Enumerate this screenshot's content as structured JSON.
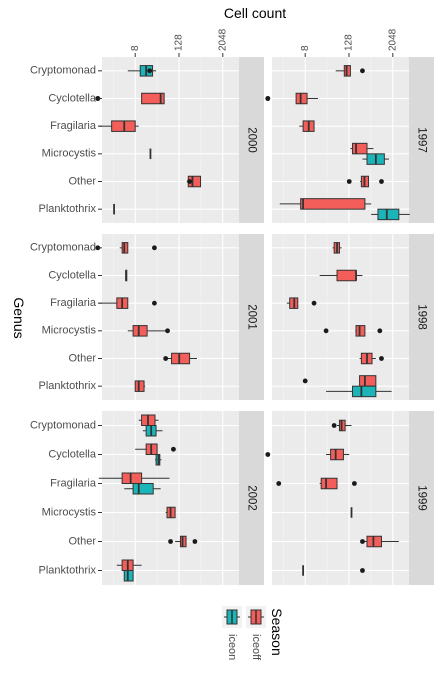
{
  "chart_data": {
    "type": "boxplot",
    "orientation": "horizontal",
    "x_scale": "log2",
    "xlabel": "Cell count",
    "ylabel": "Genus",
    "x_ticks": [
      8,
      128,
      2048
    ],
    "xlim": [
      0.5,
      50000
    ],
    "legend": {
      "title": "Season",
      "placement": "bottom",
      "entries": [
        {
          "name": "iceon",
          "color": "#1BB5B9"
        },
        {
          "name": "iceoff",
          "color": "#F35E5A"
        }
      ]
    },
    "categories": [
      "Cryptomonad",
      "Cyclotella",
      "Fragilaria",
      "Microcystis",
      "Other",
      "Planktothrix"
    ],
    "panels": [
      {
        "year": "2000",
        "boxes": [
          {
            "genus": "Cryptomonad",
            "season": "iceon",
            "wlo": 5,
            "q1": 11,
            "median": 16,
            "q3": 24,
            "whi": 30,
            "outliers": [
              20
            ]
          },
          {
            "genus": "Cyclotella",
            "season": "iceoff",
            "wlo": 12,
            "q1": 12,
            "median": 40,
            "q3": 50,
            "whi": 50,
            "outliers": [
              0.75,
              0.75
            ]
          },
          {
            "genus": "Fragilaria",
            "season": "iceoff",
            "wlo": 0.8,
            "q1": 1.8,
            "median": 4,
            "q3": 8,
            "whi": 10
          },
          {
            "genus": "Microcystis",
            "season": "iceoff",
            "wlo": 21,
            "q1": 21,
            "median": 21,
            "q3": 21,
            "whi": 21
          },
          {
            "genus": "Other",
            "season": "iceoff",
            "wlo": 210,
            "q1": 230,
            "median": 300,
            "q3": 500,
            "whi": 510,
            "outliers": [
              250
            ]
          },
          {
            "genus": "Planktothrix",
            "season": "iceoff",
            "wlo": 2.1,
            "q1": 2.1,
            "median": 2.1,
            "q3": 2.1,
            "whi": 2.1
          }
        ]
      },
      {
        "year": "2001",
        "boxes": [
          {
            "genus": "Cryptomonad",
            "season": "iceoff",
            "wlo": 3,
            "q1": 3.5,
            "median": 4,
            "q3": 5,
            "whi": 5,
            "outliers": [
              0.75,
              27
            ]
          },
          {
            "genus": "Cyclotella",
            "season": "iceoff",
            "wlo": 4.4,
            "q1": 4.4,
            "median": 4.5,
            "q3": 4.7,
            "whi": 4.7
          },
          {
            "genus": "Fragilaria",
            "season": "iceoff",
            "wlo": 0.8,
            "q1": 2.5,
            "median": 3.5,
            "q3": 5,
            "whi": 5,
            "outliers": [
              27
            ]
          },
          {
            "genus": "Microcystis",
            "season": "iceoff",
            "wlo": 5,
            "q1": 7,
            "median": 10,
            "q3": 17,
            "whi": 60,
            "outliers": [
              62
            ]
          },
          {
            "genus": "Other",
            "season": "iceoff",
            "wlo": 60,
            "q1": 80,
            "median": 130,
            "q3": 250,
            "whi": 400,
            "outliers": [
              55
            ]
          },
          {
            "genus": "Planktothrix",
            "season": "iceoff",
            "wlo": 8,
            "q1": 8,
            "median": 10,
            "q3": 14,
            "whi": 15
          }
        ]
      },
      {
        "year": "2002",
        "boxes": [
          {
            "genus": "Cryptomonad",
            "season": "iceoff",
            "wlo": 10,
            "q1": 12,
            "median": 18,
            "q3": 28,
            "whi": 35
          },
          {
            "genus": "Cryptomonad",
            "season": "iceon",
            "wlo": 13,
            "q1": 16,
            "median": 22,
            "q3": 30,
            "whi": 45
          },
          {
            "genus": "Cyclotella",
            "season": "iceoff",
            "wlo": 8,
            "q1": 16,
            "median": 22,
            "q3": 32,
            "whi": 32,
            "outliers": [
              90
            ]
          },
          {
            "genus": "Cyclotella",
            "season": "iceon",
            "wlo": 28,
            "q1": 30,
            "median": 35,
            "q3": 38,
            "whi": 42
          },
          {
            "genus": "Fragilaria",
            "season": "iceoff",
            "wlo": 0.8,
            "q1": 3.5,
            "median": 6,
            "q3": 12,
            "whi": 70
          },
          {
            "genus": "Fragilaria",
            "season": "iceon",
            "wlo": 4,
            "q1": 7,
            "median": 10,
            "q3": 25,
            "whi": 40
          },
          {
            "genus": "Microcystis",
            "season": "iceoff",
            "wlo": 55,
            "q1": 60,
            "median": 75,
            "q3": 100,
            "whi": 100
          },
          {
            "genus": "Other",
            "season": "iceoff",
            "wlo": 100,
            "q1": 140,
            "median": 160,
            "q3": 200,
            "whi": 200,
            "outliers": [
              350,
              75
            ]
          },
          {
            "genus": "Planktothrix",
            "season": "iceoff",
            "wlo": 2.5,
            "q1": 3.5,
            "median": 5,
            "q3": 7,
            "whi": 12
          },
          {
            "genus": "Planktothrix",
            "season": "iceon",
            "wlo": 4,
            "q1": 4,
            "median": 5,
            "q3": 7,
            "whi": 7
          }
        ]
      },
      {
        "year": "1997",
        "boxes": [
          {
            "genus": "Cryptomonad",
            "season": "iceoff",
            "wlo": 55,
            "q1": 95,
            "median": 110,
            "q3": 140,
            "whi": 140,
            "outliers": [
              300
            ]
          },
          {
            "genus": "Cyclotella",
            "season": "iceoff",
            "wlo": 4.5,
            "q1": 4.5,
            "median": 6,
            "q3": 9,
            "whi": 18,
            "outliers": [
              0.75,
              0.75
            ]
          },
          {
            "genus": "Fragilaria",
            "season": "iceoff",
            "wlo": 5.5,
            "q1": 7,
            "median": 10,
            "q3": 14,
            "whi": 14
          },
          {
            "genus": "Microcystis",
            "season": "iceoff",
            "wlo": 140,
            "q1": 160,
            "median": 200,
            "q3": 400,
            "whi": 600
          },
          {
            "genus": "Microcystis",
            "season": "iceon",
            "wlo": 300,
            "q1": 400,
            "median": 700,
            "q3": 1200,
            "whi": 1600
          },
          {
            "genus": "Other",
            "season": "iceoff",
            "wlo": 260,
            "q1": 280,
            "median": 340,
            "q3": 440,
            "whi": 440,
            "outliers": [
              130,
              1000
            ]
          },
          {
            "genus": "Planktothrix",
            "season": "iceoff",
            "wlo": 1.6,
            "q1": 6,
            "median": 7,
            "q3": 350,
            "whi": 520
          },
          {
            "genus": "Planktothrix",
            "season": "iceon",
            "wlo": 520,
            "q1": 800,
            "median": 1400,
            "q3": 3000,
            "whi": 6000
          }
        ]
      },
      {
        "year": "1998",
        "boxes": [
          {
            "genus": "Cryptomonad",
            "season": "iceoff",
            "wlo": 45,
            "q1": 50,
            "median": 60,
            "q3": 70,
            "whi": 80
          },
          {
            "genus": "Cyclotella",
            "season": "iceoff",
            "wlo": 20,
            "q1": 60,
            "median": 200,
            "q3": 200,
            "whi": 300
          },
          {
            "genus": "Fragilaria",
            "season": "iceoff",
            "wlo": 2.5,
            "q1": 3,
            "median": 4,
            "q3": 5,
            "whi": 5,
            "outliers": [
              14
            ]
          },
          {
            "genus": "Microcystis",
            "season": "iceoff",
            "wlo": 190,
            "q1": 200,
            "median": 250,
            "q3": 350,
            "whi": 350,
            "outliers": [
              900,
              30
            ]
          },
          {
            "genus": "Other",
            "season": "iceoff",
            "wlo": 250,
            "q1": 280,
            "median": 400,
            "q3": 550,
            "whi": 700,
            "outliers": [
              1000
            ]
          },
          {
            "genus": "Planktothrix",
            "season": "iceoff",
            "wlo": 240,
            "q1": 250,
            "median": 350,
            "q3": 700,
            "whi": 700,
            "outliers": [
              8
            ]
          },
          {
            "genus": "Planktothrix",
            "season": "iceon",
            "wlo": 30,
            "q1": 160,
            "median": 280,
            "q3": 700,
            "whi": 1900
          }
        ]
      },
      {
        "year": "1999",
        "boxes": [
          {
            "genus": "Cryptomonad",
            "season": "iceoff",
            "wlo": 60,
            "q1": 70,
            "median": 80,
            "q3": 100,
            "whi": 150,
            "outliers": [
              50
            ]
          },
          {
            "genus": "Cyclotella",
            "season": "iceoff",
            "wlo": 30,
            "q1": 40,
            "median": 55,
            "q3": 90,
            "whi": 130,
            "outliers": [
              0.75
            ]
          },
          {
            "genus": "Fragilaria",
            "season": "iceoff",
            "wlo": 20,
            "q1": 22,
            "median": 30,
            "q3": 60,
            "whi": 60,
            "outliers": [
              180,
              1.5
            ]
          },
          {
            "genus": "Microcystis",
            "season": "iceoff",
            "wlo": 150,
            "q1": 150,
            "median": 150,
            "q3": 150,
            "whi": 150
          },
          {
            "genus": "Other",
            "season": "iceoff",
            "wlo": 280,
            "q1": 400,
            "median": 600,
            "q3": 1000,
            "whi": 3000,
            "outliers": [
              300
            ]
          },
          {
            "genus": "Planktothrix",
            "season": "iceoff",
            "wlo": 7,
            "q1": 7,
            "median": 7,
            "q3": 7,
            "whi": 7,
            "outliers": [
              300
            ]
          }
        ]
      }
    ]
  }
}
